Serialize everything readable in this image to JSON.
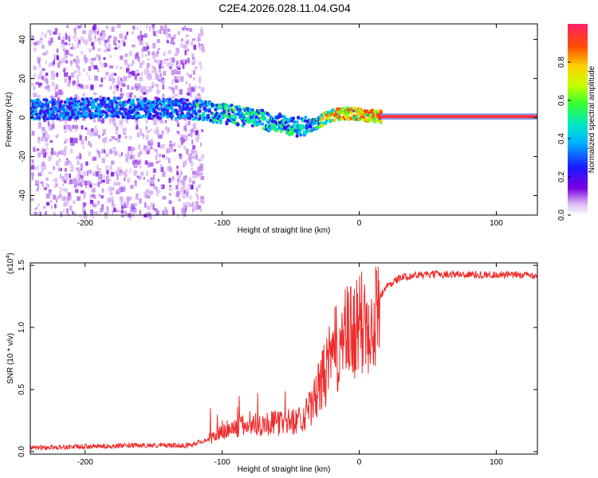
{
  "title": "C2E4.2026.028.11.04.G04",
  "chart_data": [
    {
      "type": "heatmap",
      "xlabel": "Height of straight line (km)",
      "ylabel": "Frequency (Hz)",
      "xlim": [
        -240,
        130
      ],
      "ylim": [
        -50,
        48
      ],
      "x_ticks": [
        -200,
        -100,
        0,
        100
      ],
      "y_ticks": [
        -40,
        -20,
        0,
        20,
        40
      ],
      "colorbar": {
        "label": "Normalized spectral amplitude",
        "range": [
          0.0,
          1.0
        ],
        "ticks": [
          0.0,
          0.2,
          0.4,
          0.6,
          0.8
        ],
        "tick_labels": [
          "0.0",
          "0.2",
          "0.4",
          "0.6",
          "0.8"
        ]
      },
      "ridge": {
        "description_points_x": [
          -240,
          -180,
          -120,
          -80,
          -60,
          -45,
          -35,
          -25,
          -15,
          -5,
          5,
          15,
          130
        ],
        "description_points_y": [
          4,
          5,
          4,
          0,
          -3,
          -5,
          -4,
          0,
          2,
          2,
          1,
          0.5,
          0.5
        ]
      }
    },
    {
      "type": "line",
      "xlabel": "Height of straight line (km)",
      "ylabel": "SNR (10 * v/v)",
      "multiplier_label": "(x10",
      "multiplier_exp": "4",
      "xlim": [
        -240,
        130
      ],
      "ylim": [
        -0.02,
        1.52
      ],
      "x_ticks": [
        -200,
        -100,
        0,
        100
      ],
      "y_ticks": [
        0.0,
        0.5,
        1.0,
        1.5
      ],
      "y_tick_labels": [
        "0.0",
        "0.5",
        "1.0",
        "1.5"
      ],
      "color": "#ee2b2b",
      "envelope_x": [
        -240,
        -160,
        -125,
        -110,
        -100,
        -80,
        -60,
        -45,
        -35,
        -28,
        -22,
        -18,
        -12,
        -5,
        0,
        5,
        10,
        15,
        20,
        25,
        30,
        40,
        60,
        130
      ],
      "envelope_y": [
        0.03,
        0.05,
        0.05,
        0.1,
        0.16,
        0.22,
        0.23,
        0.25,
        0.35,
        0.55,
        0.7,
        0.8,
        0.9,
        0.95,
        1.0,
        1.05,
        1.15,
        1.25,
        1.33,
        1.37,
        1.4,
        1.42,
        1.43,
        1.42
      ]
    }
  ]
}
